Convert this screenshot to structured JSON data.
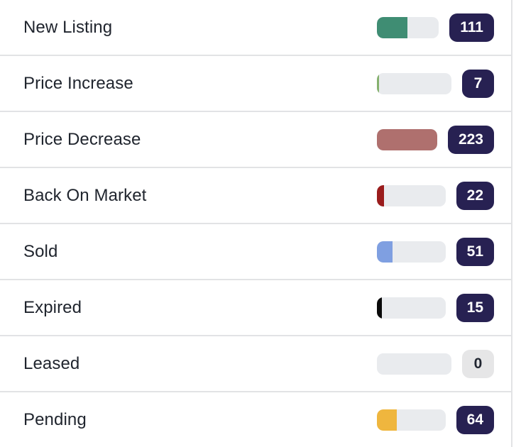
{
  "chart_data": {
    "type": "bar",
    "orientation": "horizontal",
    "title": "",
    "categories": [
      "New Listing",
      "Price Increase",
      "Price Decrease",
      "Back On Market",
      "Sold",
      "Expired",
      "Leased",
      "Pending"
    ],
    "values": [
      111,
      7,
      223,
      22,
      51,
      15,
      0,
      64
    ],
    "bar_colors": [
      "#3f8d73",
      "#85b16e",
      "#af706e",
      "#9a1c1c",
      "#7f9fe1",
      "#0a0a0a",
      "#e9ebee",
      "#efb63e"
    ],
    "xlim": [
      0,
      223
    ],
    "grid": false,
    "legend": "none"
  },
  "styles": {
    "badge_bg": "#272152",
    "badge_text": "#ffffff",
    "badge_zero_bg": "#e6e6e7",
    "badge_zero_text": "#212631",
    "track_color": "#e9ebee",
    "divider_color": "#e2e3e5",
    "label_color": "#20252e",
    "background": "#ffffff"
  }
}
